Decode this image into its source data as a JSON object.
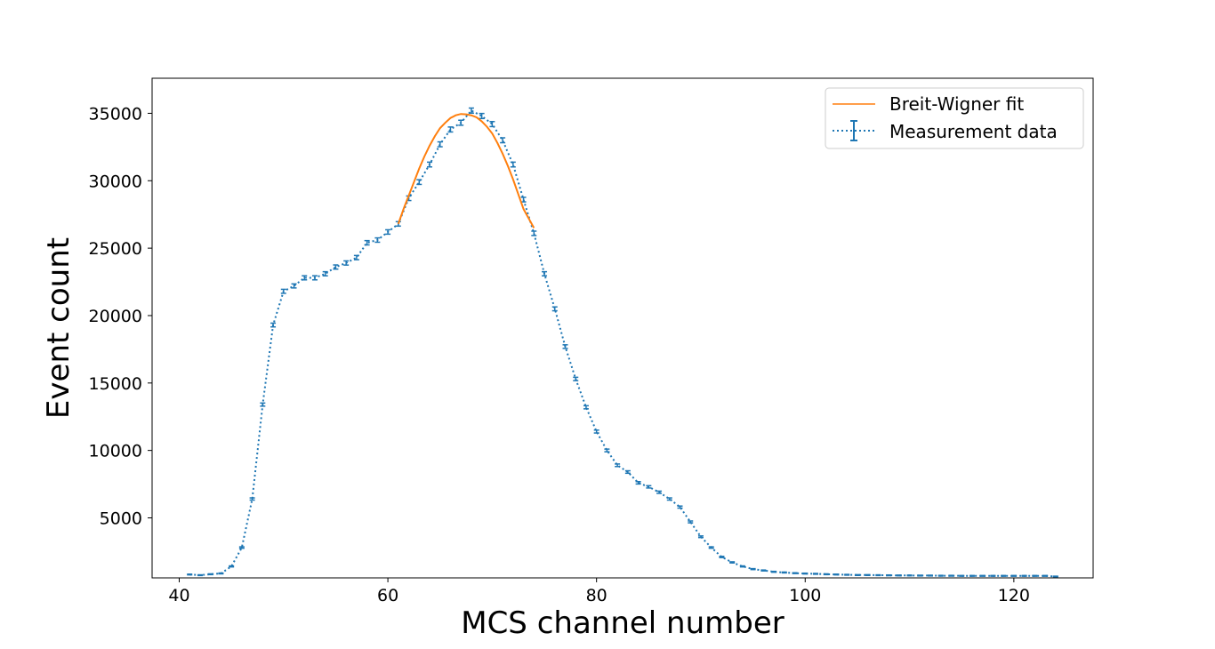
{
  "chart_data": {
    "type": "line",
    "xlabel": "MCS channel number",
    "ylabel": "Event count",
    "xlim": [
      37.4,
      127.6
    ],
    "ylim": [
      550,
      37600
    ],
    "xticks": [
      40,
      60,
      80,
      100,
      120
    ],
    "yticks": [
      5000,
      10000,
      15000,
      20000,
      25000,
      30000,
      35000
    ],
    "grid": false,
    "legend_position": "top-right",
    "series": [
      {
        "name": "Measurement data",
        "style": "dotted line with error bars",
        "color": "#1f77b4",
        "x": [
          41,
          42,
          43,
          44,
          45,
          46,
          47,
          48,
          49,
          50,
          51,
          52,
          53,
          54,
          55,
          56,
          57,
          58,
          59,
          60,
          61,
          62,
          63,
          64,
          65,
          66,
          67,
          68,
          69,
          70,
          71,
          72,
          73,
          74,
          75,
          76,
          77,
          78,
          79,
          80,
          81,
          82,
          83,
          84,
          85,
          86,
          87,
          88,
          89,
          90,
          91,
          92,
          93,
          94,
          95,
          96,
          97,
          98,
          99,
          100,
          101,
          102,
          103,
          104,
          105,
          106,
          107,
          108,
          109,
          110,
          111,
          112,
          113,
          114,
          115,
          116,
          117,
          118,
          119,
          120,
          121,
          122,
          123,
          124
        ],
        "y": [
          800,
          750,
          820,
          880,
          1400,
          2800,
          6400,
          13400,
          19300,
          21800,
          22200,
          22800,
          22800,
          23100,
          23600,
          23900,
          24300,
          25400,
          25600,
          26200,
          26800,
          28700,
          29900,
          31200,
          32700,
          33800,
          34300,
          35200,
          34800,
          34200,
          33000,
          31200,
          28600,
          26100,
          23100,
          20500,
          17700,
          15300,
          13200,
          11400,
          10000,
          8900,
          8400,
          7600,
          7300,
          6900,
          6400,
          5800,
          4700,
          3600,
          2800,
          2100,
          1700,
          1400,
          1200,
          1100,
          1000,
          950,
          900,
          870,
          850,
          820,
          800,
          780,
          760,
          760,
          750,
          740,
          730,
          730,
          720,
          720,
          710,
          710,
          700,
          700,
          700,
          700,
          700,
          700,
          700,
          700,
          700,
          650
        ],
        "error": [
          28,
          27,
          29,
          30,
          37,
          53,
          80,
          116,
          139,
          148,
          149,
          151,
          151,
          152,
          154,
          155,
          156,
          159,
          160,
          162,
          164,
          169,
          173,
          177,
          181,
          184,
          185,
          188,
          187,
          185,
          182,
          177,
          169,
          162,
          152,
          143,
          133,
          124,
          115,
          107,
          100,
          94,
          92,
          87,
          85,
          83,
          80,
          76,
          69,
          60,
          53,
          46,
          41,
          37,
          35,
          33,
          32,
          31,
          30,
          29,
          29,
          29,
          28,
          28,
          28,
          28,
          27,
          27,
          27,
          27,
          27,
          27,
          27,
          27,
          27,
          27,
          27,
          27,
          27,
          27,
          27,
          27,
          27,
          26
        ]
      },
      {
        "name": "Breit-Wigner fit",
        "style": "solid line",
        "color": "#ff7f0e",
        "x": [
          61,
          61.5,
          62,
          62.5,
          63,
          63.5,
          64,
          64.5,
          65,
          65.5,
          66,
          66.5,
          67,
          67.5,
          68,
          68.5,
          69,
          69.5,
          70,
          70.5,
          71,
          71.5,
          72,
          72.5,
          73,
          73.5,
          74
        ],
        "y": [
          26800,
          27900,
          28900,
          29900,
          30900,
          31800,
          32600,
          33300,
          33900,
          34300,
          34650,
          34850,
          34950,
          34920,
          34850,
          34700,
          34400,
          34000,
          33500,
          32800,
          32000,
          31100,
          30100,
          29000,
          27900,
          27200,
          26500
        ]
      }
    ]
  }
}
